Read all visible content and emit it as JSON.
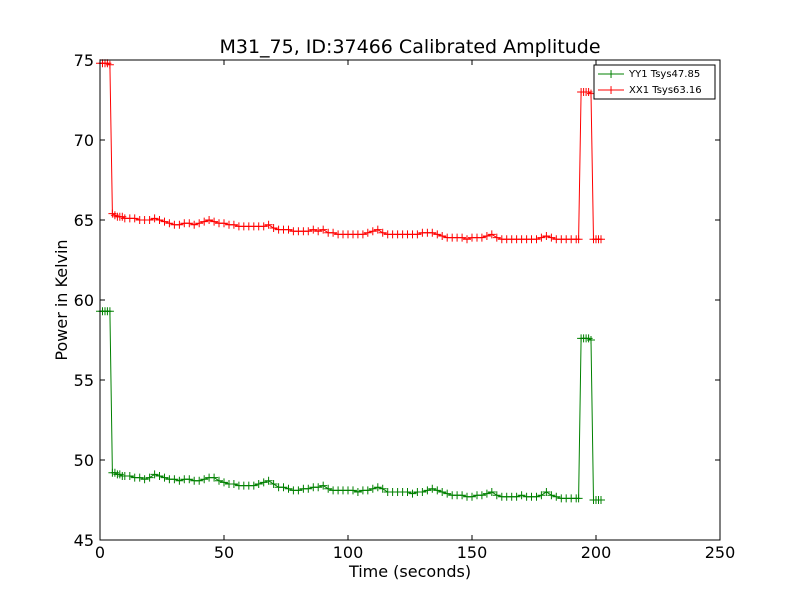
{
  "chart_data": {
    "type": "line",
    "title": "M31_75, ID:37466 Calibrated Amplitude",
    "xlabel": "Time (seconds)",
    "ylabel": "Power in Kelvin",
    "xlim": [
      0,
      250
    ],
    "ylim": [
      45,
      75
    ],
    "xticks": [
      0,
      50,
      100,
      150,
      200,
      250
    ],
    "yticks": [
      45,
      50,
      55,
      60,
      65,
      70,
      75
    ],
    "grid": false,
    "legend_position": "top-right",
    "marker": "+",
    "series": [
      {
        "name": "YY1 Tsys47.85",
        "color": "#008000",
        "points": [
          [
            0,
            59.3
          ],
          [
            1,
            59.3
          ],
          [
            2,
            59.3
          ],
          [
            3,
            59.3
          ],
          [
            4,
            59.3
          ],
          [
            5,
            49.2
          ],
          [
            6,
            49.2
          ],
          [
            7,
            49.1
          ],
          [
            8,
            49.1
          ],
          [
            9,
            49.0
          ],
          [
            10,
            49.0
          ],
          [
            12,
            49.0
          ],
          [
            14,
            48.9
          ],
          [
            16,
            48.9
          ],
          [
            18,
            48.8
          ],
          [
            20,
            48.9
          ],
          [
            22,
            49.1
          ],
          [
            24,
            49.0
          ],
          [
            26,
            48.9
          ],
          [
            28,
            48.8
          ],
          [
            30,
            48.8
          ],
          [
            32,
            48.7
          ],
          [
            34,
            48.8
          ],
          [
            36,
            48.8
          ],
          [
            38,
            48.7
          ],
          [
            40,
            48.7
          ],
          [
            42,
            48.8
          ],
          [
            44,
            48.9
          ],
          [
            46,
            48.9
          ],
          [
            48,
            48.7
          ],
          [
            50,
            48.6
          ],
          [
            52,
            48.5
          ],
          [
            54,
            48.5
          ],
          [
            56,
            48.4
          ],
          [
            58,
            48.4
          ],
          [
            60,
            48.4
          ],
          [
            62,
            48.4
          ],
          [
            64,
            48.5
          ],
          [
            66,
            48.6
          ],
          [
            68,
            48.7
          ],
          [
            70,
            48.5
          ],
          [
            72,
            48.3
          ],
          [
            74,
            48.3
          ],
          [
            76,
            48.2
          ],
          [
            78,
            48.1
          ],
          [
            80,
            48.1
          ],
          [
            82,
            48.2
          ],
          [
            84,
            48.2
          ],
          [
            86,
            48.3
          ],
          [
            88,
            48.3
          ],
          [
            90,
            48.4
          ],
          [
            92,
            48.2
          ],
          [
            94,
            48.1
          ],
          [
            96,
            48.1
          ],
          [
            98,
            48.1
          ],
          [
            100,
            48.1
          ],
          [
            102,
            48.1
          ],
          [
            104,
            48.0
          ],
          [
            106,
            48.1
          ],
          [
            108,
            48.1
          ],
          [
            110,
            48.2
          ],
          [
            112,
            48.3
          ],
          [
            114,
            48.2
          ],
          [
            116,
            48.0
          ],
          [
            118,
            48.0
          ],
          [
            120,
            48.0
          ],
          [
            122,
            48.0
          ],
          [
            124,
            48.0
          ],
          [
            126,
            47.9
          ],
          [
            128,
            48.0
          ],
          [
            130,
            48.0
          ],
          [
            132,
            48.1
          ],
          [
            134,
            48.2
          ],
          [
            136,
            48.1
          ],
          [
            138,
            48.0
          ],
          [
            140,
            47.9
          ],
          [
            142,
            47.8
          ],
          [
            144,
            47.8
          ],
          [
            146,
            47.8
          ],
          [
            148,
            47.7
          ],
          [
            150,
            47.7
          ],
          [
            152,
            47.8
          ],
          [
            154,
            47.8
          ],
          [
            156,
            47.9
          ],
          [
            158,
            48.0
          ],
          [
            160,
            47.8
          ],
          [
            162,
            47.7
          ],
          [
            164,
            47.7
          ],
          [
            166,
            47.7
          ],
          [
            168,
            47.7
          ],
          [
            170,
            47.8
          ],
          [
            172,
            47.7
          ],
          [
            174,
            47.7
          ],
          [
            176,
            47.7
          ],
          [
            178,
            47.8
          ],
          [
            180,
            48.0
          ],
          [
            182,
            47.8
          ],
          [
            184,
            47.7
          ],
          [
            186,
            47.6
          ],
          [
            188,
            47.6
          ],
          [
            190,
            47.6
          ],
          [
            192,
            47.6
          ],
          [
            193,
            47.6
          ],
          [
            194,
            57.6
          ],
          [
            195,
            57.6
          ],
          [
            196,
            57.6
          ],
          [
            197,
            57.6
          ],
          [
            198,
            57.5
          ],
          [
            199,
            47.5
          ],
          [
            200,
            47.5
          ],
          [
            201,
            47.5
          ],
          [
            202,
            47.5
          ]
        ]
      },
      {
        "name": "XX1 Tsys63.16",
        "color": "#ff0000",
        "points": [
          [
            0,
            74.8
          ],
          [
            1,
            74.8
          ],
          [
            2,
            74.8
          ],
          [
            3,
            74.8
          ],
          [
            4,
            74.7
          ],
          [
            5,
            65.4
          ],
          [
            6,
            65.3
          ],
          [
            7,
            65.2
          ],
          [
            8,
            65.2
          ],
          [
            9,
            65.2
          ],
          [
            10,
            65.1
          ],
          [
            12,
            65.1
          ],
          [
            14,
            65.1
          ],
          [
            16,
            65.0
          ],
          [
            18,
            65.0
          ],
          [
            20,
            65.0
          ],
          [
            22,
            65.1
          ],
          [
            24,
            65.0
          ],
          [
            26,
            64.9
          ],
          [
            28,
            64.8
          ],
          [
            30,
            64.7
          ],
          [
            32,
            64.7
          ],
          [
            34,
            64.8
          ],
          [
            36,
            64.8
          ],
          [
            38,
            64.7
          ],
          [
            40,
            64.8
          ],
          [
            42,
            64.9
          ],
          [
            44,
            65.0
          ],
          [
            46,
            64.9
          ],
          [
            48,
            64.8
          ],
          [
            50,
            64.8
          ],
          [
            52,
            64.7
          ],
          [
            54,
            64.7
          ],
          [
            56,
            64.6
          ],
          [
            58,
            64.6
          ],
          [
            60,
            64.6
          ],
          [
            62,
            64.6
          ],
          [
            64,
            64.6
          ],
          [
            66,
            64.6
          ],
          [
            68,
            64.7
          ],
          [
            70,
            64.5
          ],
          [
            72,
            64.4
          ],
          [
            74,
            64.4
          ],
          [
            76,
            64.4
          ],
          [
            78,
            64.3
          ],
          [
            80,
            64.3
          ],
          [
            82,
            64.3
          ],
          [
            84,
            64.3
          ],
          [
            86,
            64.4
          ],
          [
            88,
            64.3
          ],
          [
            90,
            64.4
          ],
          [
            92,
            64.2
          ],
          [
            94,
            64.2
          ],
          [
            96,
            64.1
          ],
          [
            98,
            64.1
          ],
          [
            100,
            64.1
          ],
          [
            102,
            64.1
          ],
          [
            104,
            64.1
          ],
          [
            106,
            64.1
          ],
          [
            108,
            64.2
          ],
          [
            110,
            64.3
          ],
          [
            112,
            64.4
          ],
          [
            114,
            64.2
          ],
          [
            116,
            64.1
          ],
          [
            118,
            64.1
          ],
          [
            120,
            64.1
          ],
          [
            122,
            64.1
          ],
          [
            124,
            64.1
          ],
          [
            126,
            64.1
          ],
          [
            128,
            64.1
          ],
          [
            130,
            64.2
          ],
          [
            132,
            64.2
          ],
          [
            134,
            64.2
          ],
          [
            136,
            64.1
          ],
          [
            138,
            64.0
          ],
          [
            140,
            63.9
          ],
          [
            142,
            63.9
          ],
          [
            144,
            63.9
          ],
          [
            146,
            63.9
          ],
          [
            148,
            63.8
          ],
          [
            150,
            63.9
          ],
          [
            152,
            63.9
          ],
          [
            154,
            63.9
          ],
          [
            156,
            64.0
          ],
          [
            158,
            64.1
          ],
          [
            160,
            63.9
          ],
          [
            162,
            63.8
          ],
          [
            164,
            63.8
          ],
          [
            166,
            63.8
          ],
          [
            168,
            63.8
          ],
          [
            170,
            63.8
          ],
          [
            172,
            63.8
          ],
          [
            174,
            63.8
          ],
          [
            176,
            63.8
          ],
          [
            178,
            63.9
          ],
          [
            180,
            64.0
          ],
          [
            182,
            63.9
          ],
          [
            184,
            63.8
          ],
          [
            186,
            63.8
          ],
          [
            188,
            63.8
          ],
          [
            190,
            63.8
          ],
          [
            192,
            63.8
          ],
          [
            193,
            63.8
          ],
          [
            194,
            73.0
          ],
          [
            195,
            73.0
          ],
          [
            196,
            73.0
          ],
          [
            197,
            73.0
          ],
          [
            198,
            72.9
          ],
          [
            199,
            63.8
          ],
          [
            200,
            63.8
          ],
          [
            201,
            63.8
          ],
          [
            202,
            63.8
          ]
        ]
      }
    ]
  }
}
